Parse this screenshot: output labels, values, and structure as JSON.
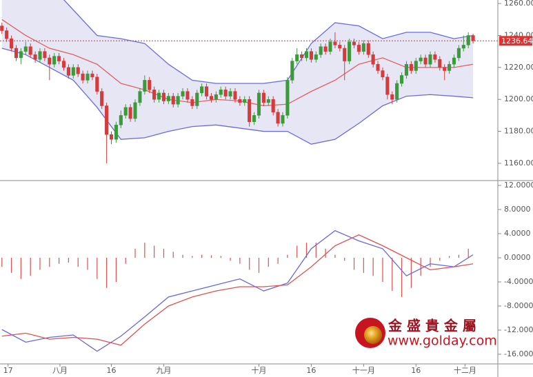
{
  "chart_data": [
    {
      "type": "candlestick",
      "x": [
        0,
        1,
        2,
        3,
        4,
        5,
        6,
        7,
        8,
        9,
        10,
        11,
        12,
        13,
        14,
        15,
        16,
        17,
        18,
        19,
        20,
        21,
        22,
        23,
        24,
        25,
        26,
        27,
        28,
        29,
        30,
        31,
        32,
        33,
        34,
        35,
        36,
        37,
        38,
        39,
        40,
        41,
        42,
        43,
        44,
        45,
        46,
        47,
        48,
        49,
        50,
        51,
        52,
        53,
        54,
        55,
        56,
        57,
        58,
        59,
        60,
        61,
        62,
        63,
        64,
        65,
        66,
        67,
        68,
        69,
        70,
        71,
        72,
        73,
        74,
        75,
        76,
        77,
        78,
        79,
        80,
        81,
        82,
        83,
        84,
        85,
        86,
        87,
        88,
        89,
        90,
        91,
        92,
        93,
        94,
        95,
        96,
        97,
        98,
        99
      ],
      "open": [
        1246,
        1243,
        1238,
        1232,
        1226,
        1230,
        1233,
        1228,
        1225,
        1230,
        1226,
        1222,
        1227,
        1224,
        1220,
        1215,
        1220,
        1216,
        1212,
        1216,
        1214,
        1205,
        1196,
        1178,
        1175,
        1184,
        1190,
        1195,
        1188,
        1198,
        1205,
        1212,
        1206,
        1200,
        1204,
        1199,
        1202,
        1197,
        1202,
        1205,
        1200,
        1196,
        1204,
        1208,
        1202,
        1200,
        1203,
        1206,
        1202,
        1205,
        1200,
        1198,
        1200,
        1186,
        1190,
        1204,
        1198,
        1200,
        1192,
        1185,
        1190,
        1212,
        1224,
        1228,
        1226,
        1230,
        1225,
        1228,
        1233,
        1230,
        1236,
        1234,
        1232,
        1224,
        1236,
        1234,
        1230,
        1235,
        1228,
        1222,
        1218,
        1214,
        1203,
        1200,
        1210,
        1215,
        1222,
        1218,
        1224,
        1226,
        1222,
        1228,
        1225,
        1220,
        1218,
        1222,
        1226,
        1232,
        1234,
        1240
      ],
      "high": [
        1248,
        1245,
        1240,
        1234,
        1232,
        1236,
        1235,
        1230,
        1232,
        1232,
        1228,
        1229,
        1229,
        1226,
        1222,
        1222,
        1222,
        1218,
        1218,
        1218,
        1216,
        1207,
        1198,
        1180,
        1186,
        1193,
        1197,
        1197,
        1200,
        1207,
        1215,
        1214,
        1208,
        1206,
        1206,
        1204,
        1204,
        1204,
        1207,
        1207,
        1202,
        1206,
        1210,
        1210,
        1204,
        1205,
        1208,
        1208,
        1207,
        1207,
        1202,
        1202,
        1202,
        1192,
        1206,
        1206,
        1202,
        1202,
        1194,
        1192,
        1214,
        1226,
        1232,
        1230,
        1232,
        1232,
        1230,
        1235,
        1235,
        1238,
        1242,
        1236,
        1234,
        1238,
        1238,
        1236,
        1237,
        1237,
        1230,
        1224,
        1220,
        1216,
        1205,
        1212,
        1217,
        1224,
        1224,
        1226,
        1228,
        1228,
        1230,
        1230,
        1227,
        1222,
        1224,
        1228,
        1234,
        1240,
        1242,
        1241
      ],
      "low": [
        1241,
        1236,
        1230,
        1224,
        1222,
        1228,
        1226,
        1223,
        1223,
        1224,
        1212,
        1220,
        1222,
        1218,
        1213,
        1213,
        1214,
        1210,
        1210,
        1212,
        1203,
        1194,
        1160,
        1172,
        1173,
        1182,
        1188,
        1186,
        1186,
        1196,
        1203,
        1204,
        1198,
        1198,
        1197,
        1197,
        1195,
        1195,
        1200,
        1198,
        1194,
        1194,
        1202,
        1200,
        1198,
        1198,
        1201,
        1200,
        1200,
        1198,
        1196,
        1196,
        1183,
        1184,
        1188,
        1196,
        1196,
        1190,
        1183,
        1183,
        1188,
        1210,
        1222,
        1224,
        1224,
        1223,
        1223,
        1226,
        1228,
        1228,
        1232,
        1230,
        1212,
        1222,
        1232,
        1228,
        1228,
        1226,
        1220,
        1216,
        1212,
        1200,
        1197,
        1198,
        1208,
        1213,
        1216,
        1216,
        1222,
        1220,
        1220,
        1223,
        1218,
        1212,
        1216,
        1220,
        1224,
        1230,
        1232,
        1235
      ],
      "close": [
        1243,
        1238,
        1232,
        1226,
        1230,
        1233,
        1228,
        1225,
        1230,
        1226,
        1222,
        1227,
        1224,
        1220,
        1215,
        1220,
        1216,
        1212,
        1216,
        1214,
        1205,
        1196,
        1178,
        1175,
        1184,
        1190,
        1195,
        1188,
        1198,
        1205,
        1212,
        1206,
        1200,
        1204,
        1199,
        1202,
        1197,
        1202,
        1205,
        1200,
        1196,
        1204,
        1208,
        1202,
        1200,
        1203,
        1206,
        1202,
        1205,
        1200,
        1198,
        1200,
        1186,
        1190,
        1204,
        1198,
        1200,
        1192,
        1185,
        1190,
        1212,
        1224,
        1228,
        1226,
        1230,
        1225,
        1228,
        1233,
        1230,
        1236,
        1234,
        1232,
        1224,
        1236,
        1234,
        1230,
        1235,
        1228,
        1222,
        1218,
        1214,
        1203,
        1200,
        1210,
        1215,
        1222,
        1218,
        1224,
        1226,
        1222,
        1228,
        1225,
        1220,
        1218,
        1222,
        1226,
        1232,
        1234,
        1240,
        1236.64
      ],
      "up_color": "#3c9a3c",
      "down_color": "#d23c3c",
      "bands": {
        "x": [
          0,
          5,
          10,
          15,
          20,
          25,
          30,
          35,
          40,
          45,
          50,
          55,
          60,
          65,
          70,
          75,
          80,
          85,
          90,
          95,
          99
        ],
        "upper": [
          1290,
          1280,
          1272,
          1256,
          1240,
          1238,
          1235,
          1222,
          1212,
          1210,
          1210,
          1210,
          1212,
          1235,
          1248,
          1246,
          1238,
          1242,
          1242,
          1238,
          1240
        ],
        "middle": [
          1250,
          1240,
          1232,
          1228,
          1222,
          1210,
          1206,
          1200,
          1198,
          1200,
          1199,
          1196,
          1197,
          1205,
          1212,
          1222,
          1226,
          1220,
          1220,
          1220,
          1222
        ],
        "lower": [
          1232,
          1228,
          1220,
          1212,
          1195,
          1175,
          1176,
          1180,
          1183,
          1184,
          1182,
          1180,
          1180,
          1172,
          1175,
          1185,
          1196,
          1202,
          1203,
          1202,
          1201
        ],
        "color": "#6a6ae0",
        "middle_color": "#e06060",
        "fill": "#dcdcf0"
      },
      "last_price": 1236.64,
      "last_price_color": "#e03030",
      "xlim": [
        -0.4,
        104.2
      ],
      "ylim": [
        1149.2,
        1262.2
      ],
      "yticks": [
        {
          "value": 1160,
          "label": "1160.00"
        },
        {
          "value": 1180,
          "label": "1180.00"
        },
        {
          "value": 1200,
          "label": "1200.00"
        },
        {
          "value": 1220,
          "label": "1220.00"
        },
        {
          "value": 1240,
          "label": "1240.00"
        },
        {
          "value": 1260,
          "label": "1260.00"
        }
      ]
    },
    {
      "type": "macd",
      "series": [
        {
          "color": "#6666dd",
          "x": [
            0,
            5,
            10,
            15,
            20,
            25,
            30,
            35,
            40,
            45,
            50,
            55,
            60,
            65,
            70,
            75,
            80,
            85,
            90,
            95,
            99
          ],
          "values": [
            -11.9,
            -14,
            -13.2,
            -12.8,
            -15.5,
            -13,
            -9.8,
            -6.5,
            -5.5,
            -4.5,
            -3.5,
            -5.5,
            -4.2,
            1.5,
            4.5,
            2.8,
            1.5,
            -3,
            -1,
            -1.5,
            0.5
          ]
        },
        {
          "color": "#e05050",
          "x": [
            0,
            5,
            10,
            15,
            20,
            25,
            30,
            35,
            40,
            45,
            50,
            55,
            60,
            65,
            70,
            75,
            80,
            85,
            90,
            95,
            99
          ],
          "values": [
            -13,
            -12.5,
            -13.5,
            -13.2,
            -13.5,
            -14.5,
            -11,
            -8,
            -6.5,
            -5.5,
            -4.8,
            -4.8,
            -4.5,
            -1.5,
            2,
            3.8,
            2,
            0,
            -2,
            -1.5,
            -1
          ]
        }
      ],
      "histogram": {
        "color": "#e05050",
        "x": [
          0,
          2,
          4,
          6,
          8,
          10,
          12,
          14,
          16,
          18,
          20,
          22,
          24,
          26,
          28,
          30,
          32,
          34,
          36,
          38,
          40,
          42,
          44,
          46,
          48,
          50,
          52,
          54,
          56,
          58,
          60,
          62,
          64,
          66,
          68,
          70,
          72,
          74,
          76,
          78,
          80,
          82,
          84,
          86,
          88,
          90,
          92,
          94,
          96,
          98
        ],
        "values": [
          -1.5,
          -2.5,
          -3.5,
          -3,
          -2,
          -1.5,
          -1,
          -0.8,
          -1.5,
          -2,
          -3.5,
          -5,
          -4,
          -1,
          1.5,
          2.5,
          2,
          1.5,
          1,
          0.5,
          0.3,
          0.5,
          0.4,
          0.3,
          -0.5,
          -1,
          -2,
          -2.5,
          -1.5,
          -1,
          0.5,
          2,
          2.5,
          2.5,
          1.5,
          0.5,
          -0.5,
          -2,
          -2.5,
          -3,
          -4,
          -5.5,
          -6.5,
          -5,
          -3,
          -1.5,
          -0.5,
          0.3,
          0.5,
          1.5
        ]
      },
      "xlim": [
        -0.4,
        104.2
      ],
      "ylim": [
        -17.6,
        12.8
      ],
      "yticks": [
        {
          "value": -16,
          "label": "-16.000"
        },
        {
          "value": -12,
          "label": "-12.000"
        },
        {
          "value": -8,
          "label": "-8.0000"
        },
        {
          "value": -4,
          "label": "-4.0000"
        },
        {
          "value": 0,
          "label": "0.0000"
        },
        {
          "value": 4,
          "label": "4.0000"
        },
        {
          "value": 8,
          "label": "8.0000"
        },
        {
          "value": 12,
          "label": "12.0000"
        }
      ],
      "xticks": [
        {
          "value": 1.3,
          "label": "17"
        },
        {
          "value": 12.2,
          "label": "八月"
        },
        {
          "value": 23,
          "label": "16"
        },
        {
          "value": 34,
          "label": "九月"
        },
        {
          "value": 54,
          "label": "十月"
        },
        {
          "value": 65,
          "label": "16"
        },
        {
          "value": 76,
          "label": "十一月"
        },
        {
          "value": 87,
          "label": "16"
        },
        {
          "value": 97.3,
          "label": "十二月"
        }
      ]
    }
  ],
  "watermark": {
    "name": "金 盛 貴 金 屬",
    "url": "www.golday.com"
  }
}
